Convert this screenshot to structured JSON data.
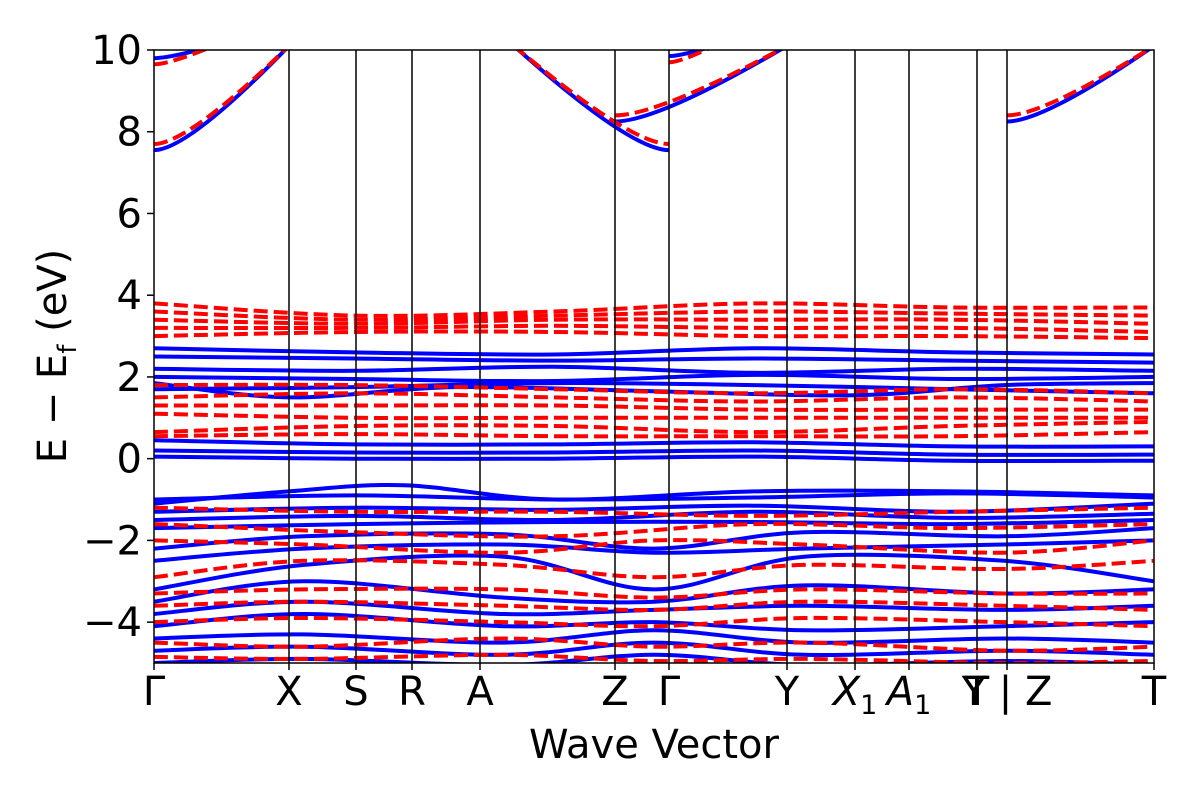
{
  "chart_data": {
    "type": "line",
    "title": "",
    "xlabel": "Wave Vector",
    "ylabel_main": "E − E",
    "ylabel_sub": "f",
    "ylabel_unit": " (eV)",
    "ylim": [
      -5,
      10
    ],
    "yticks": [
      {
        "value": -4,
        "label": "−4"
      },
      {
        "value": -2,
        "label": "−2"
      },
      {
        "value": 0,
        "label": "0"
      },
      {
        "value": 2,
        "label": "2"
      },
      {
        "value": 4,
        "label": "4"
      },
      {
        "value": 6,
        "label": "6"
      },
      {
        "value": 8,
        "label": "8"
      },
      {
        "value": 10,
        "label": "10"
      }
    ],
    "xlim": [
      0,
      1
    ],
    "kpoints": [
      {
        "pos": 0.0,
        "label": "Γ",
        "sub": ""
      },
      {
        "pos": 0.135,
        "label": "X",
        "sub": ""
      },
      {
        "pos": 0.202,
        "label": "S",
        "sub": ""
      },
      {
        "pos": 0.258,
        "label": "R",
        "sub": ""
      },
      {
        "pos": 0.326,
        "label": "A",
        "sub": ""
      },
      {
        "pos": 0.461,
        "label": "Z",
        "sub": ""
      },
      {
        "pos": 0.515,
        "label": "Γ",
        "sub": ""
      },
      {
        "pos": 0.633,
        "label": "Y",
        "sub": ""
      },
      {
        "pos": 0.701,
        "label": "X",
        "sub": "1"
      },
      {
        "pos": 0.755,
        "label": "A",
        "sub": "1"
      },
      {
        "pos": 0.823,
        "label": "T",
        "sub": ""
      },
      {
        "pos": 0.853,
        "label": "Y | Z",
        "sub": ""
      },
      {
        "pos": 1.0,
        "label": "T",
        "sub": ""
      }
    ],
    "legend": "none",
    "grid": false,
    "series": [
      {
        "style": "solid",
        "color": "#0000ff",
        "bands": [
          {
            "x": [
              0,
              0.135
            ],
            "y": [
              7.55,
              10.1
            ]
          },
          {
            "x": [
              0,
              0.06
            ],
            "y": [
              9.8,
              10.1
            ]
          },
          {
            "x": [
              0.36,
              0.515
            ],
            "y": [
              10.1,
              7.55
            ]
          },
          {
            "x": [
              0.461,
              0.633
            ],
            "y": [
              8.25,
              10.1
            ]
          },
          {
            "x": [
              0.515,
              0.56
            ],
            "y": [
              9.85,
              10.1
            ]
          },
          {
            "x": [
              0.853,
              1.0
            ],
            "y": [
              8.25,
              10.1
            ]
          },
          {
            "x": [
              0,
              0.2,
              0.4,
              0.6,
              0.8,
              1.0
            ],
            "y": [
              2.7,
              2.6,
              2.55,
              2.7,
              2.6,
              2.55
            ]
          },
          {
            "x": [
              0,
              0.2,
              0.4,
              0.6,
              0.8,
              1.0
            ],
            "y": [
              2.5,
              2.45,
              2.4,
              2.45,
              2.4,
              2.35
            ]
          },
          {
            "x": [
              0,
              0.2,
              0.4,
              0.6,
              0.8,
              1.0
            ],
            "y": [
              2.2,
              2.15,
              2.25,
              2.1,
              2.2,
              2.15
            ]
          },
          {
            "x": [
              0,
              0.2,
              0.4,
              0.6,
              0.8,
              1.0
            ],
            "y": [
              2.0,
              1.95,
              1.9,
              2.05,
              1.95,
              2.0
            ]
          },
          {
            "x": [
              0,
              0.135,
              0.3,
              0.5,
              0.7,
              0.85,
              1.0
            ],
            "y": [
              1.85,
              1.5,
              1.75,
              1.65,
              1.55,
              1.8,
              1.85
            ]
          },
          {
            "x": [
              0,
              0.2,
              0.4,
              0.6,
              0.8,
              1.0
            ],
            "y": [
              1.7,
              1.75,
              1.85,
              1.8,
              1.7,
              1.6
            ]
          },
          {
            "x": [
              0,
              0.2,
              0.4,
              0.6,
              0.8,
              1.0
            ],
            "y": [
              0.45,
              0.35,
              0.35,
              0.4,
              0.3,
              0.3
            ]
          },
          {
            "x": [
              0,
              0.2,
              0.4,
              0.6,
              0.8,
              1.0
            ],
            "y": [
              0.2,
              0.15,
              0.15,
              0.2,
              0.1,
              0.1
            ]
          },
          {
            "x": [
              0,
              0.2,
              0.4,
              0.6,
              0.8,
              1.0
            ],
            "y": [
              0.05,
              0.0,
              0.0,
              0.05,
              -0.05,
              -0.05
            ]
          },
          {
            "x": [
              0,
              0.2,
              0.4,
              0.6,
              0.8,
              1.0
            ],
            "y": [
              -1.0,
              -0.9,
              -1.0,
              -0.95,
              -0.85,
              -0.95
            ]
          },
          {
            "x": [
              0,
              0.135,
              0.25,
              0.4,
              0.6,
              0.8,
              1.0
            ],
            "y": [
              -1.1,
              -0.8,
              -0.65,
              -1.0,
              -0.8,
              -0.8,
              -0.9
            ]
          },
          {
            "x": [
              0,
              0.2,
              0.4,
              0.6,
              0.8,
              1.0
            ],
            "y": [
              -1.3,
              -1.2,
              -1.25,
              -1.15,
              -1.3,
              -1.1
            ]
          },
          {
            "x": [
              0,
              0.2,
              0.4,
              0.6,
              0.8,
              1.0
            ],
            "y": [
              -1.5,
              -1.4,
              -1.5,
              -1.3,
              -1.45,
              -1.35
            ]
          },
          {
            "x": [
              0,
              0.2,
              0.4,
              0.6,
              0.8,
              1.0
            ],
            "y": [
              -1.7,
              -1.6,
              -1.55,
              -1.55,
              -1.6,
              -1.5
            ]
          },
          {
            "x": [
              0,
              0.15,
              0.35,
              0.5,
              0.65,
              0.85,
              1.0
            ],
            "y": [
              -2.2,
              -1.9,
              -1.85,
              -2.2,
              -1.8,
              -1.9,
              -1.7
            ]
          },
          {
            "x": [
              0,
              0.15,
              0.35,
              0.5,
              0.65,
              0.85,
              1.0
            ],
            "y": [
              -2.5,
              -2.2,
              -2.1,
              -2.3,
              -2.2,
              -2.1,
              -2.0
            ]
          },
          {
            "x": [
              0,
              0.15,
              0.35,
              0.5,
              0.65,
              0.85,
              1.0
            ],
            "y": [
              -3.2,
              -2.6,
              -2.4,
              -3.2,
              -2.4,
              -2.5,
              -3.0
            ]
          },
          {
            "x": [
              0,
              0.15,
              0.35,
              0.5,
              0.65,
              0.85,
              1.0
            ],
            "y": [
              -3.5,
              -3.0,
              -3.4,
              -3.5,
              -3.1,
              -3.3,
              -3.2
            ]
          },
          {
            "x": [
              0,
              0.15,
              0.35,
              0.5,
              0.65,
              0.85,
              1.0
            ],
            "y": [
              -3.8,
              -3.5,
              -3.8,
              -3.7,
              -3.6,
              -3.7,
              -3.6
            ]
          },
          {
            "x": [
              0,
              0.15,
              0.35,
              0.5,
              0.65,
              0.85,
              1.0
            ],
            "y": [
              -4.1,
              -3.8,
              -4.1,
              -4.0,
              -4.2,
              -4.1,
              -4.0
            ]
          },
          {
            "x": [
              0,
              0.15,
              0.35,
              0.5,
              0.65,
              0.85,
              1.0
            ],
            "y": [
              -4.4,
              -4.3,
              -4.5,
              -4.2,
              -4.5,
              -4.4,
              -4.5
            ]
          },
          {
            "x": [
              0,
              0.15,
              0.35,
              0.5,
              0.65,
              0.85,
              1.0
            ],
            "y": [
              -4.7,
              -4.6,
              -4.8,
              -4.5,
              -4.8,
              -4.7,
              -4.8
            ]
          },
          {
            "x": [
              0,
              0.15,
              0.35,
              0.5,
              0.65,
              0.85,
              1.0
            ],
            "y": [
              -5.0,
              -4.9,
              -5.05,
              -4.8,
              -5.05,
              -4.95,
              -5.05
            ]
          }
        ]
      },
      {
        "style": "dashed",
        "color": "#ff0000",
        "bands": [
          {
            "x": [
              0,
              0.135
            ],
            "y": [
              7.7,
              10.1
            ]
          },
          {
            "x": [
              0,
              0.06
            ],
            "y": [
              9.65,
              10.1
            ]
          },
          {
            "x": [
              0.36,
              0.515
            ],
            "y": [
              10.1,
              7.7
            ]
          },
          {
            "x": [
              0.461,
              0.633
            ],
            "y": [
              8.4,
              10.1
            ]
          },
          {
            "x": [
              0.515,
              0.56
            ],
            "y": [
              9.7,
              10.1
            ]
          },
          {
            "x": [
              0.853,
              1.0
            ],
            "y": [
              8.4,
              10.1
            ]
          },
          {
            "x": [
              0,
              0.2,
              0.4,
              0.6,
              0.8,
              1.0
            ],
            "y": [
              3.8,
              3.5,
              3.6,
              3.8,
              3.7,
              3.7
            ]
          },
          {
            "x": [
              0,
              0.2,
              0.4,
              0.6,
              0.8,
              1.0
            ],
            "y": [
              3.6,
              3.4,
              3.5,
              3.6,
              3.55,
              3.5
            ]
          },
          {
            "x": [
              0,
              0.2,
              0.4,
              0.6,
              0.8,
              1.0
            ],
            "y": [
              3.4,
              3.3,
              3.4,
              3.4,
              3.4,
              3.3
            ]
          },
          {
            "x": [
              0,
              0.2,
              0.4,
              0.6,
              0.8,
              1.0
            ],
            "y": [
              3.2,
              3.2,
              3.25,
              3.2,
              3.2,
              3.1
            ]
          },
          {
            "x": [
              0,
              0.2,
              0.4,
              0.6,
              0.8,
              1.0
            ],
            "y": [
              3.0,
              3.1,
              3.1,
              3.0,
              3.0,
              2.95
            ]
          },
          {
            "x": [
              0,
              0.2,
              0.4,
              0.6,
              0.8,
              1.0
            ],
            "y": [
              1.8,
              1.8,
              1.7,
              1.6,
              1.7,
              1.6
            ]
          },
          {
            "x": [
              0,
              0.2,
              0.4,
              0.6,
              0.8,
              1.0
            ],
            "y": [
              1.5,
              1.6,
              1.5,
              1.4,
              1.5,
              1.4
            ]
          },
          {
            "x": [
              0,
              0.2,
              0.4,
              0.6,
              0.8,
              1.0
            ],
            "y": [
              1.3,
              1.3,
              1.3,
              1.2,
              1.2,
              1.2
            ]
          },
          {
            "x": [
              0,
              0.2,
              0.4,
              0.6,
              0.8,
              1.0
            ],
            "y": [
              1.1,
              1.0,
              1.0,
              1.0,
              1.0,
              1.0
            ]
          },
          {
            "x": [
              0,
              0.2,
              0.4,
              0.6,
              0.8,
              1.0
            ],
            "y": [
              0.65,
              0.8,
              0.8,
              0.65,
              0.8,
              0.9
            ]
          },
          {
            "x": [
              0,
              0.2,
              0.4,
              0.6,
              0.8,
              1.0
            ],
            "y": [
              0.55,
              0.6,
              0.55,
              0.55,
              0.55,
              0.65
            ]
          },
          {
            "x": [
              0,
              0.2,
              0.4,
              0.6,
              0.8,
              1.0
            ],
            "y": [
              -1.2,
              -1.3,
              -1.3,
              -1.4,
              -1.3,
              -1.2
            ]
          },
          {
            "x": [
              0,
              0.2,
              0.4,
              0.6,
              0.8,
              1.0
            ],
            "y": [
              -1.6,
              -1.8,
              -1.9,
              -1.6,
              -1.7,
              -1.6
            ]
          },
          {
            "x": [
              0,
              0.15,
              0.35,
              0.5,
              0.65,
              0.85,
              1.0
            ],
            "y": [
              -2.0,
              -2.1,
              -2.3,
              -2.0,
              -2.1,
              -2.3,
              -2.0
            ]
          },
          {
            "x": [
              0,
              0.15,
              0.35,
              0.5,
              0.65,
              0.85,
              1.0
            ],
            "y": [
              -2.9,
              -2.5,
              -2.6,
              -2.9,
              -2.6,
              -2.7,
              -2.5
            ]
          },
          {
            "x": [
              0,
              0.15,
              0.35,
              0.5,
              0.65,
              0.85,
              1.0
            ],
            "y": [
              -3.3,
              -3.2,
              -3.2,
              -3.4,
              -3.2,
              -3.3,
              -3.3
            ]
          },
          {
            "x": [
              0,
              0.15,
              0.35,
              0.5,
              0.65,
              0.85,
              1.0
            ],
            "y": [
              -3.6,
              -3.5,
              -3.6,
              -3.7,
              -3.5,
              -3.6,
              -3.7
            ]
          },
          {
            "x": [
              0,
              0.15,
              0.35,
              0.5,
              0.65,
              0.85,
              1.0
            ],
            "y": [
              -4.0,
              -3.9,
              -4.0,
              -4.1,
              -3.9,
              -4.0,
              -4.1
            ]
          },
          {
            "x": [
              0,
              0.15,
              0.35,
              0.5,
              0.65,
              0.85,
              1.0
            ],
            "y": [
              -4.5,
              -4.6,
              -4.4,
              -4.6,
              -4.5,
              -4.7,
              -4.6
            ]
          },
          {
            "x": [
              0,
              0.15,
              0.35,
              0.5,
              0.65,
              0.85,
              1.0
            ],
            "y": [
              -4.85,
              -4.9,
              -4.8,
              -4.95,
              -4.9,
              -5.0,
              -4.95
            ]
          }
        ]
      }
    ]
  }
}
